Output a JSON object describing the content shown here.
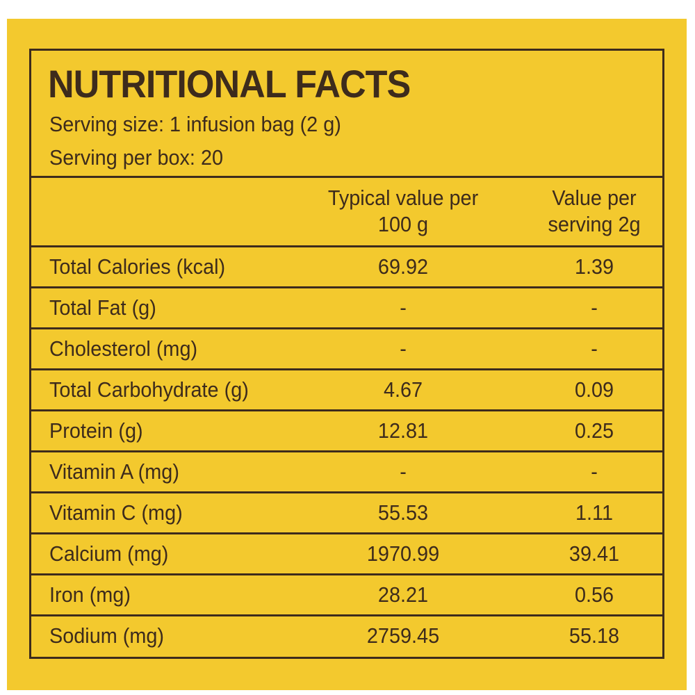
{
  "label": {
    "title": "NUTRITIONAL FACTS",
    "serving_size": "Serving size: 1 infusion bag (2 g)",
    "servings_per_box": "Serving per box: 20"
  },
  "columns": {
    "per_100g_line1": "Typical value per",
    "per_100g_line2": "100 g",
    "per_serving_line1": "Value per",
    "per_serving_line2": "serving 2g"
  },
  "rows": [
    {
      "name": "Total Calories (kcal)",
      "per_100g": "69.92",
      "per_serving": "1.39"
    },
    {
      "name": "Total Fat (g)",
      "per_100g": "-",
      "per_serving": "-"
    },
    {
      "name": "Cholesterol (mg)",
      "per_100g": "-",
      "per_serving": "-"
    },
    {
      "name": "Total Carbohydrate (g)",
      "per_100g": "4.67",
      "per_serving": "0.09"
    },
    {
      "name": "Protein (g)",
      "per_100g": "12.81",
      "per_serving": "0.25"
    },
    {
      "name": "Vitamin A (mg)",
      "per_100g": "-",
      "per_serving": "-"
    },
    {
      "name": "Vitamin C (mg)",
      "per_100g": "55.53",
      "per_serving": "1.11"
    },
    {
      "name": "Calcium (mg)",
      "per_100g": "1970.99",
      "per_serving": "39.41"
    },
    {
      "name": "Iron (mg)",
      "per_100g": "28.21",
      "per_serving": "0.56"
    },
    {
      "name": "Sodium (mg)",
      "per_100g": "2759.45",
      "per_serving": "55.18"
    }
  ],
  "colors": {
    "background": "#f3c92e",
    "ink": "#3d2b1c"
  }
}
